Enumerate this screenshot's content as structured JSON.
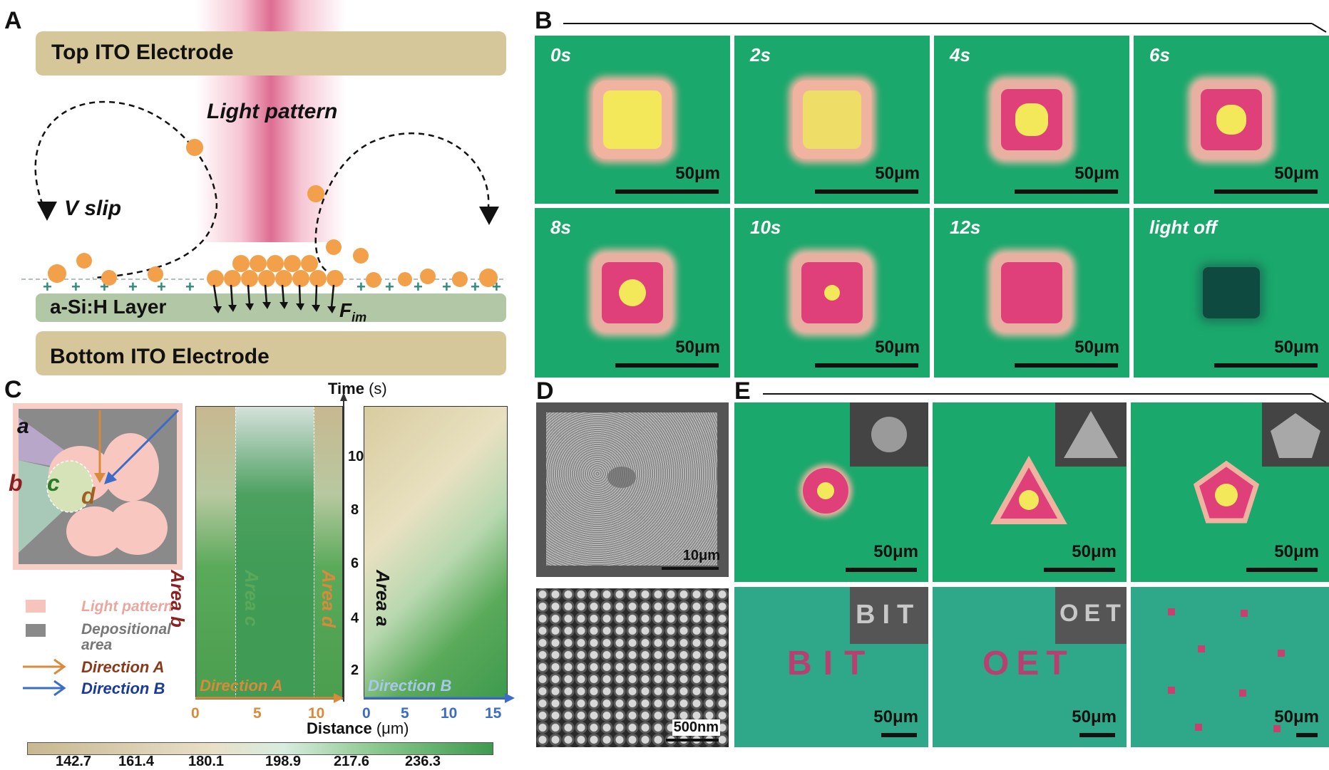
{
  "panels": {
    "a": "A",
    "b": "B",
    "c": "C",
    "d": "D",
    "e": "E"
  },
  "panel_a": {
    "top_electrode": "Top ITO Electrode",
    "bottom_electrode": "Bottom ITO Electrode",
    "layer": "a-Si:H Layer",
    "light_pattern": "Light pattern",
    "v_slip": "V slip",
    "f_im": "F",
    "f_im_sub": "im"
  },
  "panel_b": {
    "tiles": [
      {
        "time": "0s",
        "scale": "50μm"
      },
      {
        "time": "2s",
        "scale": "50μm"
      },
      {
        "time": "4s",
        "scale": "50μm"
      },
      {
        "time": "6s",
        "scale": "50μm"
      },
      {
        "time": "8s",
        "scale": "50μm"
      },
      {
        "time": "10s",
        "scale": "50μm"
      },
      {
        "time": "12s",
        "scale": "50μm"
      },
      {
        "time": "light off",
        "scale": "50μm"
      }
    ]
  },
  "panel_c": {
    "region_labels": {
      "a": "a",
      "b": "b",
      "c": "c",
      "d": "d"
    },
    "legend": {
      "light": "Light pattern",
      "dep1": "Depositional",
      "dep2": "area",
      "dirA": "Direction A",
      "dirB": "Direction B"
    },
    "areas": {
      "b": "Area b",
      "c": "Area c",
      "d": "Area d",
      "a": "Area a"
    },
    "axis": {
      "time": "Time",
      "time_unit": "(s)",
      "distance": "Distance",
      "distance_unit": "(μm)",
      "y_ticks": [
        "10",
        "8",
        "6",
        "4",
        "2"
      ],
      "x_ticks_left": [
        "0",
        "5",
        "10"
      ],
      "x_ticks_right": [
        "0",
        "5",
        "10",
        "15"
      ],
      "dirA": "Direction A",
      "dirB": "Direction B"
    },
    "colorbar_ticks": [
      "142.7",
      "161.4",
      "180.1",
      "198.9",
      "217.6",
      "236.3"
    ]
  },
  "panel_d": {
    "scale_top": "10μm",
    "scale_bottom": "500nm"
  },
  "panel_e": {
    "tiles": [
      {
        "scale": "50μm"
      },
      {
        "scale": "50μm"
      },
      {
        "scale": "50μm"
      },
      {
        "scale": "50μm",
        "word": "BIT",
        "inset_word": "BIT"
      },
      {
        "scale": "50μm",
        "word": "OET",
        "inset_word": "OET"
      },
      {
        "scale": "50μm"
      }
    ]
  },
  "colors": {
    "tile_green": "#1aa86c",
    "electrode": "#d6c79b",
    "layer": "#b2c7a5",
    "particle": "#f2a04a",
    "magenta": "#e0407a",
    "yellow": "#f2e85a"
  }
}
